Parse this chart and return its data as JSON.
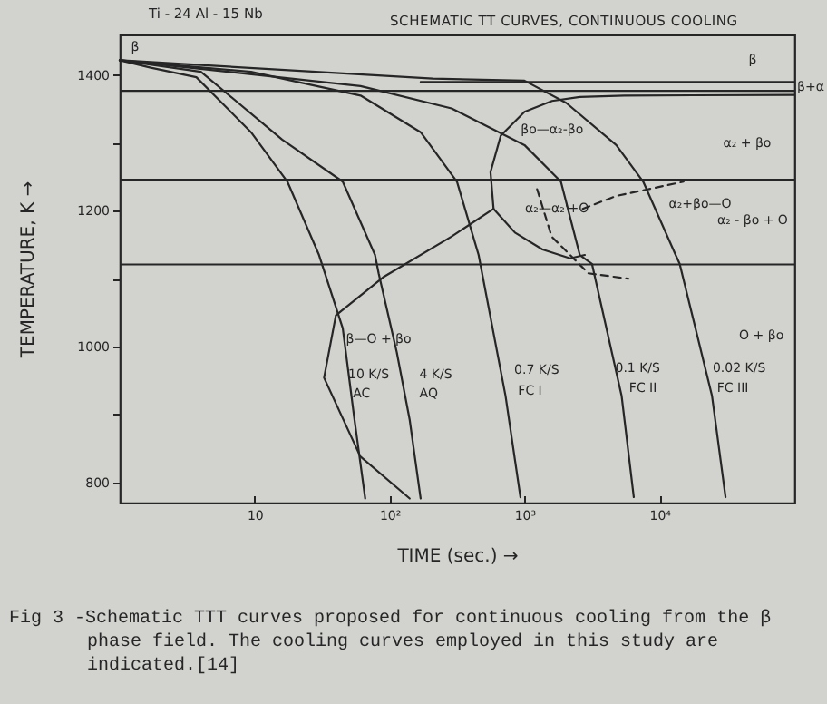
{
  "chart_data": {
    "type": "line",
    "title": "SCHEMATIC TT CURVES, CONTINUOUS COOLING",
    "subtitle": "Ti - 24 Al - 15 Nb",
    "xlabel": "TIME (sec.) →",
    "ylabel": "TEMPERATURE, K →",
    "log": "x",
    "xlim": [
      1,
      100000
    ],
    "ylim": [
      770,
      1460
    ],
    "xticks": [
      10,
      {
        "value": 100,
        "label": "10²"
      },
      {
        "value": 1000,
        "label": "10³"
      },
      {
        "value": 10000,
        "label": "10⁴"
      }
    ],
    "yticks": [
      800,
      {
        "value": 900,
        "label": null
      },
      1000,
      {
        "value": 1100,
        "label": null
      },
      1200,
      {
        "value": 1300,
        "label": null
      },
      1400
    ],
    "marker": "none",
    "series": [
      {
        "color": "#262626",
        "x": [
          1,
          1.7,
          3.7,
          9.4,
          17.5,
          30,
          45,
          55,
          66
        ],
        "values": [
          1422,
          1411,
          1397,
          1316,
          1243,
          1135,
          1027,
          892,
          776
        ]
      },
      {
        "color": "#262626",
        "x": [
          1,
          4,
          16,
          45,
          78,
          83,
          113,
          141,
          170
        ],
        "values": [
          1422,
          1405,
          1305,
          1243,
          1135,
          1108,
          992,
          892,
          776
        ]
      },
      {
        "color": "#262626",
        "x": [
          1,
          9.4,
          61,
          170,
          316,
          457,
          724,
          933
        ],
        "values": [
          1422,
          1405,
          1370,
          1316,
          1243,
          1135,
          927,
          778
        ]
      },
      {
        "color": "#262626",
        "x": [
          1,
          61,
          288,
          1000,
          1862,
          2570,
          3162,
          5248,
          6457
        ],
        "values": [
          1422,
          1384,
          1351,
          1297,
          1243,
          1135,
          1122,
          927,
          778
        ]
      },
      {
        "color": "#262626",
        "x": [
          1,
          209,
          1000,
          2042,
          4786,
          7586,
          13183,
          14125,
          24547,
          30903
        ],
        "values": [
          1422,
          1395,
          1392,
          1359,
          1297,
          1243,
          1135,
          1122,
          927,
          778
        ]
      },
      {
        "color": "#262626",
        "x": [
          141,
          60.7,
          32.7,
          40,
          91,
          287,
          590
        ],
        "values": [
          776,
          838,
          954,
          1046,
          1103,
          1162,
          1203
        ]
      },
      {
        "color": "#262626",
        "x": [
          2800,
          2180,
          1360,
          850,
          590,
          560,
          667,
          1000,
          1600,
          2570,
          5500,
          100000
        ],
        "values": [
          1135,
          1130,
          1143,
          1168,
          1203,
          1257,
          1311,
          1346,
          1362,
          1368,
          1370,
          1371
        ]
      },
      {
        "color": "#262626",
        "line_style": "dashed",
        "x": [
          1240,
          1590,
          2180,
          2970,
          5900
        ],
        "values": [
          1232,
          1162,
          1135,
          1108,
          1100
        ]
      },
      {
        "color": "#262626",
        "line_style": "dashed",
        "x": [
          2700,
          4800,
          15100
        ],
        "values": [
          1203,
          1222,
          1243
        ]
      },
      {
        "color": "#262626",
        "x": [
          170,
          100000
        ],
        "values": [
          1390,
          1390
        ]
      }
    ],
    "ref_lines": [
      {
        "axis": "y",
        "value": 1377,
        "color": "#262626"
      },
      {
        "axis": "y",
        "value": 1246,
        "color": "#262626"
      },
      {
        "axis": "y",
        "value": 1121,
        "color": "#262626"
      }
    ],
    "annotations": [
      "β",
      "β",
      "β+α",
      "α₂ + βo",
      "βo—α₂-βo",
      "α₂—α₂'+O",
      "α₂+βo—O",
      "α₂ - βo + O",
      "β—O + βo",
      "O + βo",
      "10 K/S",
      "AC",
      "4 K/S",
      "AQ",
      "0.7 K/S",
      "FC I",
      "0.1 K/S",
      "FC II",
      "0.02 K/S",
      "FC III",
      "Fig 3 -Schematic TTT curves proposed for continuous cooling from the β phase field. The cooling curves employed in this study are indicated.[14]"
    ]
  }
}
